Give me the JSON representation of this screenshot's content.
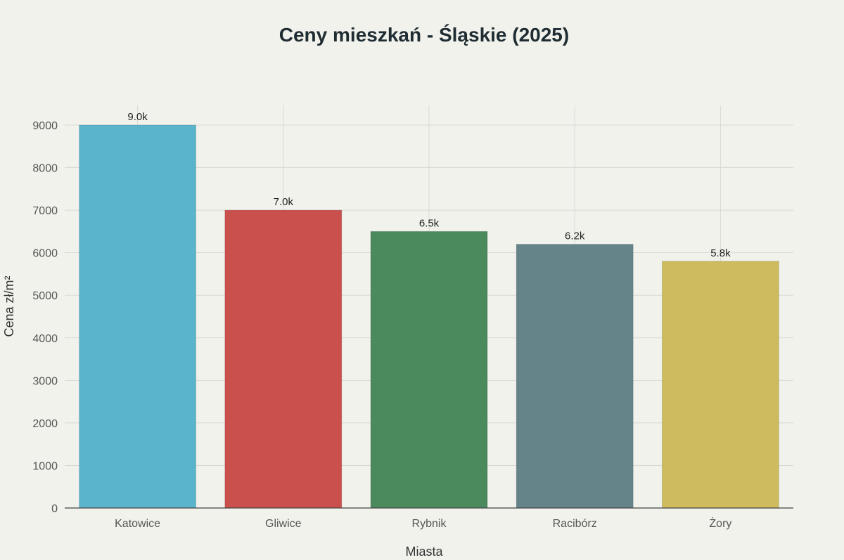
{
  "chart_data": {
    "type": "bar",
    "title": "Ceny mieszkań - Śląskie (2025)",
    "xlabel": "Miasta",
    "ylabel": "Cena zł/m²",
    "categories": [
      "Katowice",
      "Gliwice",
      "Rybnik",
      "Racibórz",
      "Żory"
    ],
    "values": [
      9000,
      7000,
      6500,
      6200,
      5800
    ],
    "data_labels": [
      "9.0k",
      "7.0k",
      "6.5k",
      "6.2k",
      "5.8k"
    ],
    "colors": [
      "#5ab4cb",
      "#c9504c",
      "#4b8a5d",
      "#64848a",
      "#cdbb5e"
    ],
    "ylim": [
      0,
      9000
    ],
    "yticks": [
      0,
      1000,
      2000,
      3000,
      4000,
      5000,
      6000,
      7000,
      8000,
      9000
    ],
    "grid": true
  }
}
